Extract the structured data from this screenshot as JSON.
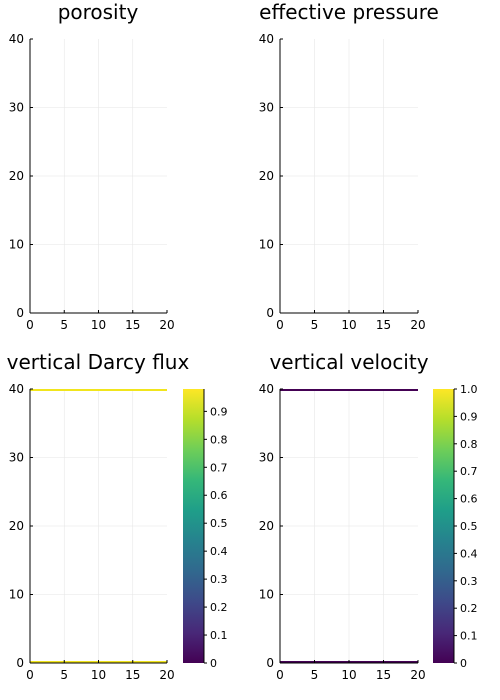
{
  "chart_data": [
    {
      "type": "heatmap",
      "title": "porosity",
      "xlim": [
        0,
        20
      ],
      "ylim": [
        0,
        40
      ],
      "xticks": [
        "0",
        "5",
        "10",
        "15",
        "20"
      ],
      "yticks": [
        "0",
        "10",
        "20",
        "30",
        "40"
      ],
      "grid": true,
      "colorbar": false,
      "values": []
    },
    {
      "type": "heatmap",
      "title": "effective pressure",
      "xlim": [
        0,
        20
      ],
      "ylim": [
        0,
        40
      ],
      "xticks": [
        "0",
        "5",
        "10",
        "15",
        "20"
      ],
      "yticks": [
        "0",
        "10",
        "20",
        "30",
        "40"
      ],
      "grid": true,
      "colorbar": false,
      "values": []
    },
    {
      "type": "heatmap",
      "title": "vertical Darcy flux",
      "xlim": [
        0,
        20
      ],
      "ylim": [
        0,
        40
      ],
      "xticks": [
        "0",
        "5",
        "10",
        "15",
        "20"
      ],
      "yticks": [
        "0",
        "10",
        "20",
        "30",
        "40"
      ],
      "grid": true,
      "colorbar": true,
      "colormap": "viridis",
      "clim": [
        0,
        0.98
      ],
      "cbticks": [
        "0",
        "0.1",
        "0.2",
        "0.3",
        "0.4",
        "0.5",
        "0.6",
        "0.7",
        "0.8",
        "0.9"
      ],
      "rows": [
        {
          "y": 0,
          "value": 0.98,
          "color": "#f1e51d"
        },
        {
          "y": 40,
          "value": 0.98,
          "color": "#f1e51d"
        }
      ]
    },
    {
      "type": "heatmap",
      "title": "vertical velocity",
      "xlim": [
        0,
        20
      ],
      "ylim": [
        0,
        40
      ],
      "xticks": [
        "0",
        "5",
        "10",
        "15",
        "20"
      ],
      "yticks": [
        "0",
        "10",
        "20",
        "30",
        "40"
      ],
      "grid": true,
      "colorbar": true,
      "colormap": "viridis",
      "clim": [
        0,
        1.0
      ],
      "cbticks": [
        "0",
        "0.1",
        "0.2",
        "0.3",
        "0.4",
        "0.5",
        "0.6",
        "0.7",
        "0.8",
        "0.9",
        "1.0"
      ],
      "rows": [
        {
          "y": 0,
          "value": 0.0,
          "color": "#440154"
        },
        {
          "y": 40,
          "value": 0.0,
          "color": "#440154"
        }
      ]
    }
  ],
  "colors": {
    "viridis": [
      "#440154",
      "#482878",
      "#3e4989",
      "#31688e",
      "#26828e",
      "#1f9e89",
      "#35b779",
      "#6ece58",
      "#b5de2b",
      "#fde725"
    ]
  }
}
